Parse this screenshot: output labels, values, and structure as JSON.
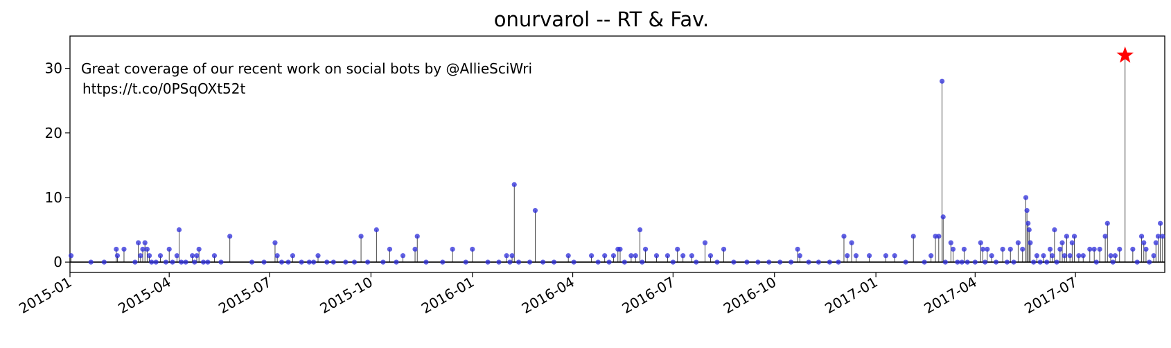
{
  "chart_data": {
    "type": "stem",
    "title": "onurvarol -- RT & Fav.",
    "xlabel": "",
    "ylabel": "",
    "x_ticks": [
      "2015-01",
      "2015-04",
      "2015-07",
      "2015-10",
      "2016-01",
      "2016-04",
      "2016-07",
      "2016-10",
      "2017-01",
      "2017-04",
      "2017-07"
    ],
    "y_ticks": [
      0,
      10,
      20,
      30
    ],
    "xlim": [
      "2015-01-01",
      "2017-09-20"
    ],
    "ylim": [
      -1.6,
      35
    ],
    "grid": false,
    "legend": "none",
    "annotation": {
      "lines": [
        "Great coverage of our recent work on social bots by @AllieSciWri",
        "https://t.co/0PSqOXt52t"
      ]
    },
    "highlight": {
      "date": "2017-08-15",
      "value": 32,
      "marker": "red-star"
    },
    "colors": {
      "stem": "#000000",
      "marker": "#2b2bd9",
      "highlight": "#ff0000",
      "baseline": "#000000"
    },
    "series": [
      {
        "points": [
          [
            "2015-01-02",
            1
          ],
          [
            "2015-01-20",
            0
          ],
          [
            "2015-02-01",
            0
          ],
          [
            "2015-02-12",
            2
          ],
          [
            "2015-02-13",
            1
          ],
          [
            "2015-02-19",
            2
          ],
          [
            "2015-03-01",
            0
          ],
          [
            "2015-03-04",
            3
          ],
          [
            "2015-03-06",
            1
          ],
          [
            "2015-03-08",
            2
          ],
          [
            "2015-03-10",
            3
          ],
          [
            "2015-03-12",
            2
          ],
          [
            "2015-03-14",
            1
          ],
          [
            "2015-03-16",
            0
          ],
          [
            "2015-03-20",
            0
          ],
          [
            "2015-03-24",
            1
          ],
          [
            "2015-03-29",
            0
          ],
          [
            "2015-04-01",
            2
          ],
          [
            "2015-04-04",
            0
          ],
          [
            "2015-04-08",
            1
          ],
          [
            "2015-04-10",
            5
          ],
          [
            "2015-04-12",
            0
          ],
          [
            "2015-04-16",
            0
          ],
          [
            "2015-04-22",
            1
          ],
          [
            "2015-04-24",
            0
          ],
          [
            "2015-04-26",
            1
          ],
          [
            "2015-04-28",
            2
          ],
          [
            "2015-05-02",
            0
          ],
          [
            "2015-05-06",
            0
          ],
          [
            "2015-05-12",
            1
          ],
          [
            "2015-05-18",
            0
          ],
          [
            "2015-05-26",
            4
          ],
          [
            "2015-06-15",
            0
          ],
          [
            "2015-06-26",
            0
          ],
          [
            "2015-07-06",
            3
          ],
          [
            "2015-07-08",
            1
          ],
          [
            "2015-07-12",
            0
          ],
          [
            "2015-07-18",
            0
          ],
          [
            "2015-07-22",
            1
          ],
          [
            "2015-07-30",
            0
          ],
          [
            "2015-08-06",
            0
          ],
          [
            "2015-08-10",
            0
          ],
          [
            "2015-08-14",
            1
          ],
          [
            "2015-08-22",
            0
          ],
          [
            "2015-08-28",
            0
          ],
          [
            "2015-09-08",
            0
          ],
          [
            "2015-09-16",
            0
          ],
          [
            "2015-09-22",
            4
          ],
          [
            "2015-09-28",
            0
          ],
          [
            "2015-10-06",
            5
          ],
          [
            "2015-10-12",
            0
          ],
          [
            "2015-10-18",
            2
          ],
          [
            "2015-10-24",
            0
          ],
          [
            "2015-10-30",
            1
          ],
          [
            "2015-11-10",
            2
          ],
          [
            "2015-11-12",
            4
          ],
          [
            "2015-11-20",
            0
          ],
          [
            "2015-12-05",
            0
          ],
          [
            "2015-12-14",
            2
          ],
          [
            "2015-12-26",
            0
          ],
          [
            "2016-01-01",
            2
          ],
          [
            "2016-01-15",
            0
          ],
          [
            "2016-01-25",
            0
          ],
          [
            "2016-02-01",
            1
          ],
          [
            "2016-02-04",
            0
          ],
          [
            "2016-02-06",
            1
          ],
          [
            "2016-02-08",
            12
          ],
          [
            "2016-02-12",
            0
          ],
          [
            "2016-02-22",
            0
          ],
          [
            "2016-02-27",
            8
          ],
          [
            "2016-03-05",
            0
          ],
          [
            "2016-03-15",
            0
          ],
          [
            "2016-03-28",
            1
          ],
          [
            "2016-04-02",
            0
          ],
          [
            "2016-04-18",
            1
          ],
          [
            "2016-04-24",
            0
          ],
          [
            "2016-04-30",
            1
          ],
          [
            "2016-05-04",
            0
          ],
          [
            "2016-05-08",
            1
          ],
          [
            "2016-05-12",
            2
          ],
          [
            "2016-05-14",
            2
          ],
          [
            "2016-05-18",
            0
          ],
          [
            "2016-05-24",
            1
          ],
          [
            "2016-05-28",
            1
          ],
          [
            "2016-06-01",
            5
          ],
          [
            "2016-06-03",
            0
          ],
          [
            "2016-06-06",
            2
          ],
          [
            "2016-06-16",
            1
          ],
          [
            "2016-06-26",
            1
          ],
          [
            "2016-07-01",
            0
          ],
          [
            "2016-07-05",
            2
          ],
          [
            "2016-07-10",
            1
          ],
          [
            "2016-07-18",
            1
          ],
          [
            "2016-07-22",
            0
          ],
          [
            "2016-07-30",
            3
          ],
          [
            "2016-08-04",
            1
          ],
          [
            "2016-08-10",
            0
          ],
          [
            "2016-08-16",
            2
          ],
          [
            "2016-08-25",
            0
          ],
          [
            "2016-09-06",
            0
          ],
          [
            "2016-09-16",
            0
          ],
          [
            "2016-09-26",
            0
          ],
          [
            "2016-10-06",
            0
          ],
          [
            "2016-10-16",
            0
          ],
          [
            "2016-10-22",
            2
          ],
          [
            "2016-10-24",
            1
          ],
          [
            "2016-11-01",
            0
          ],
          [
            "2016-11-10",
            0
          ],
          [
            "2016-11-20",
            0
          ],
          [
            "2016-11-28",
            0
          ],
          [
            "2016-12-03",
            4
          ],
          [
            "2016-12-06",
            1
          ],
          [
            "2016-12-10",
            3
          ],
          [
            "2016-12-14",
            1
          ],
          [
            "2016-12-26",
            1
          ],
          [
            "2017-01-10",
            1
          ],
          [
            "2017-01-18",
            1
          ],
          [
            "2017-01-28",
            0
          ],
          [
            "2017-02-04",
            4
          ],
          [
            "2017-02-14",
            0
          ],
          [
            "2017-02-20",
            1
          ],
          [
            "2017-02-24",
            4
          ],
          [
            "2017-02-27",
            4
          ],
          [
            "2017-03-02",
            28
          ],
          [
            "2017-03-03",
            7
          ],
          [
            "2017-03-05",
            0
          ],
          [
            "2017-03-10",
            3
          ],
          [
            "2017-03-12",
            2
          ],
          [
            "2017-03-16",
            0
          ],
          [
            "2017-03-20",
            0
          ],
          [
            "2017-03-22",
            2
          ],
          [
            "2017-03-25",
            0
          ],
          [
            "2017-04-01",
            0
          ],
          [
            "2017-04-06",
            3
          ],
          [
            "2017-04-08",
            2
          ],
          [
            "2017-04-10",
            0
          ],
          [
            "2017-04-12",
            2
          ],
          [
            "2017-04-16",
            1
          ],
          [
            "2017-04-20",
            0
          ],
          [
            "2017-04-26",
            2
          ],
          [
            "2017-04-30",
            0
          ],
          [
            "2017-05-03",
            2
          ],
          [
            "2017-05-06",
            0
          ],
          [
            "2017-05-10",
            3
          ],
          [
            "2017-05-14",
            2
          ],
          [
            "2017-05-17",
            10
          ],
          [
            "2017-05-18",
            8
          ],
          [
            "2017-05-19",
            6
          ],
          [
            "2017-05-20",
            5
          ],
          [
            "2017-05-21",
            3
          ],
          [
            "2017-05-24",
            0
          ],
          [
            "2017-05-27",
            1
          ],
          [
            "2017-05-30",
            0
          ],
          [
            "2017-06-02",
            1
          ],
          [
            "2017-06-05",
            0
          ],
          [
            "2017-06-08",
            2
          ],
          [
            "2017-06-10",
            1
          ],
          [
            "2017-06-12",
            5
          ],
          [
            "2017-06-14",
            0
          ],
          [
            "2017-06-17",
            2
          ],
          [
            "2017-06-19",
            3
          ],
          [
            "2017-06-21",
            1
          ],
          [
            "2017-06-23",
            4
          ],
          [
            "2017-06-26",
            1
          ],
          [
            "2017-06-28",
            3
          ],
          [
            "2017-06-30",
            4
          ],
          [
            "2017-07-04",
            1
          ],
          [
            "2017-07-08",
            1
          ],
          [
            "2017-07-14",
            2
          ],
          [
            "2017-07-18",
            2
          ],
          [
            "2017-07-20",
            0
          ],
          [
            "2017-07-23",
            2
          ],
          [
            "2017-07-28",
            4
          ],
          [
            "2017-07-30",
            6
          ],
          [
            "2017-08-02",
            1
          ],
          [
            "2017-08-04",
            0
          ],
          [
            "2017-08-06",
            1
          ],
          [
            "2017-08-10",
            2
          ],
          [
            "2017-08-15",
            32
          ],
          [
            "2017-08-22",
            2
          ],
          [
            "2017-08-26",
            0
          ],
          [
            "2017-08-30",
            4
          ],
          [
            "2017-09-01",
            3
          ],
          [
            "2017-09-03",
            2
          ],
          [
            "2017-09-06",
            0
          ],
          [
            "2017-09-10",
            1
          ],
          [
            "2017-09-12",
            3
          ],
          [
            "2017-09-14",
            4
          ],
          [
            "2017-09-16",
            6
          ],
          [
            "2017-09-18",
            4
          ]
        ]
      }
    ]
  }
}
